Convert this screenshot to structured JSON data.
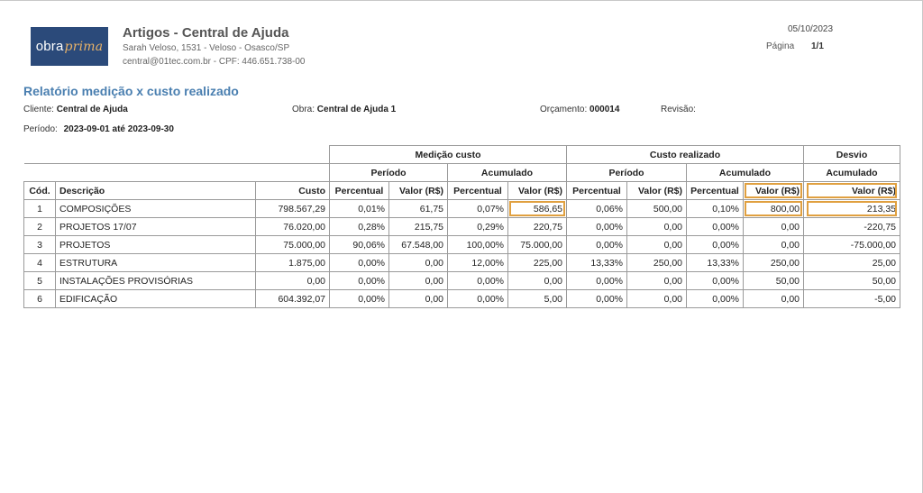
{
  "logo": {
    "text_main": "obra",
    "text_accent": "prima"
  },
  "company": {
    "name": "Artigos - Central de Ajuda",
    "address": "Sarah Veloso, 1531 - Veloso - Osasco/SP",
    "contact": "central@01tec.com.br - CPF: 446.651.738-00"
  },
  "header": {
    "date": "05/10/2023",
    "page_label": "Página",
    "page_value": "1/1"
  },
  "report": {
    "title": "Relatório medição x custo realizado",
    "cliente_label": "Cliente:",
    "cliente_value": "Central de Ajuda",
    "obra_label": "Obra:",
    "obra_value": "Central de Ajuda 1",
    "orcamento_label": "Orçamento:",
    "orcamento_value": "000014",
    "revisao_label": "Revisão:",
    "periodo_label": "Período:",
    "periodo_value": "2023-09-01 até 2023-09-30"
  },
  "table": {
    "groups": {
      "medicao": "Medição custo",
      "custo": "Custo realizado",
      "desvio": "Desvio"
    },
    "subgroups": {
      "periodo": "Período",
      "acumulado": "Acumulado"
    },
    "columns": {
      "cod": "Cód.",
      "descricao": "Descrição",
      "custo": "Custo",
      "percentual": "Percentual",
      "valor": "Valor (R$)"
    },
    "highlight_color": "#e0a040",
    "rows": [
      {
        "cod": "1",
        "descricao": "COMPOSIÇÕES",
        "custo": "798.567,29",
        "m_per_pct": "0,01%",
        "m_per_val": "61,75",
        "m_acu_pct": "0,07%",
        "m_acu_val": "586,65",
        "c_per_pct": "0,06%",
        "c_per_val": "500,00",
        "c_acu_pct": "0,10%",
        "c_acu_val": "800,00",
        "desvio": "213,35"
      },
      {
        "cod": "2",
        "descricao": "PROJETOS 17/07",
        "custo": "76.020,00",
        "m_per_pct": "0,28%",
        "m_per_val": "215,75",
        "m_acu_pct": "0,29%",
        "m_acu_val": "220,75",
        "c_per_pct": "0,00%",
        "c_per_val": "0,00",
        "c_acu_pct": "0,00%",
        "c_acu_val": "0,00",
        "desvio": "-220,75"
      },
      {
        "cod": "3",
        "descricao": "PROJETOS",
        "custo": "75.000,00",
        "m_per_pct": "90,06%",
        "m_per_val": "67.548,00",
        "m_acu_pct": "100,00%",
        "m_acu_val": "75.000,00",
        "c_per_pct": "0,00%",
        "c_per_val": "0,00",
        "c_acu_pct": "0,00%",
        "c_acu_val": "0,00",
        "desvio": "-75.000,00"
      },
      {
        "cod": "4",
        "descricao": "ESTRUTURA",
        "custo": "1.875,00",
        "m_per_pct": "0,00%",
        "m_per_val": "0,00",
        "m_acu_pct": "12,00%",
        "m_acu_val": "225,00",
        "c_per_pct": "13,33%",
        "c_per_val": "250,00",
        "c_acu_pct": "13,33%",
        "c_acu_val": "250,00",
        "desvio": "25,00"
      },
      {
        "cod": "5",
        "descricao": "INSTALAÇÕES PROVISÓRIAS",
        "custo": "0,00",
        "m_per_pct": "0,00%",
        "m_per_val": "0,00",
        "m_acu_pct": "0,00%",
        "m_acu_val": "0,00",
        "c_per_pct": "0,00%",
        "c_per_val": "0,00",
        "c_acu_pct": "0,00%",
        "c_acu_val": "50,00",
        "desvio": "50,00"
      },
      {
        "cod": "6",
        "descricao": "EDIFICAÇÃO",
        "custo": "604.392,07",
        "m_per_pct": "0,00%",
        "m_per_val": "0,00",
        "m_acu_pct": "0,00%",
        "m_acu_val": "5,00",
        "c_per_pct": "0,00%",
        "c_per_val": "0,00",
        "c_acu_pct": "0,00%",
        "c_acu_val": "0,00",
        "desvio": "-5,00"
      }
    ]
  }
}
